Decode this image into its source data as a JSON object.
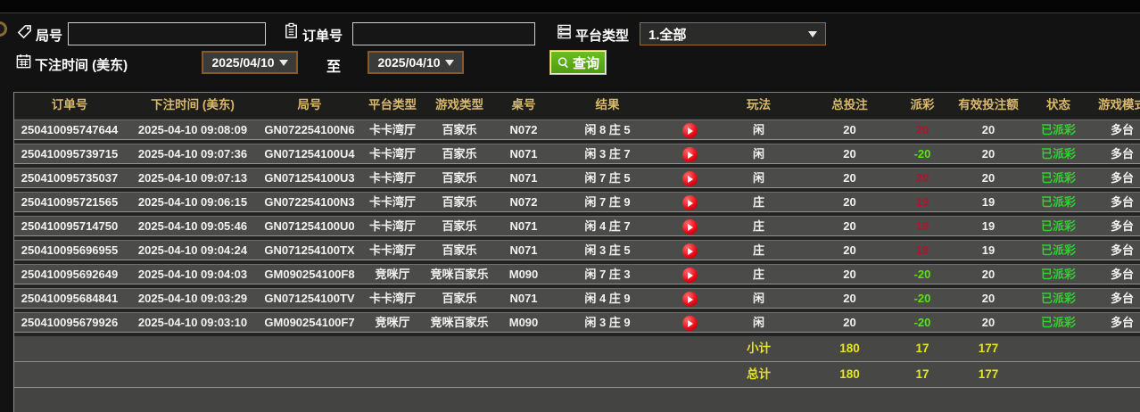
{
  "filters": {
    "round_label": "局号",
    "round_value": "",
    "order_label": "订单号",
    "order_value": "",
    "platform_label": "平台类型",
    "platform_selected": "1.全部",
    "bet_time_label": "下注时间 (美东)",
    "date_from": "2025/04/10",
    "to_label": "至",
    "date_to": "2025/04/10",
    "query_label": "查询"
  },
  "table": {
    "columns": [
      "订单号",
      "下注时间 (美东)",
      "局号",
      "平台类型",
      "游戏类型",
      "桌号",
      "结果",
      "",
      "玩法",
      "总投注",
      "派彩",
      "有效投注额",
      "状态",
      "游戏模式"
    ],
    "rows": [
      {
        "order": "250410095747644",
        "time": "2025-04-10 09:08:09",
        "round": "GN072254100N6",
        "platform": "卡卡湾厅",
        "game": "百家乐",
        "table_no": "N072",
        "result": "闲 8 庄 5",
        "bet_on": "闲",
        "total_bet": "20",
        "payout": "20",
        "payout_color": "red",
        "valid_bet": "20",
        "status": "已派彩",
        "mode": "多台"
      },
      {
        "order": "250410095739715",
        "time": "2025-04-10 09:07:36",
        "round": "GN071254100U4",
        "platform": "卡卡湾厅",
        "game": "百家乐",
        "table_no": "N071",
        "result": "闲 3 庄 7",
        "bet_on": "闲",
        "total_bet": "20",
        "payout": "-20",
        "payout_color": "green",
        "valid_bet": "20",
        "status": "已派彩",
        "mode": "多台"
      },
      {
        "order": "250410095735037",
        "time": "2025-04-10 09:07:13",
        "round": "GN071254100U3",
        "platform": "卡卡湾厅",
        "game": "百家乐",
        "table_no": "N071",
        "result": "闲 7 庄 5",
        "bet_on": "闲",
        "total_bet": "20",
        "payout": "20",
        "payout_color": "red",
        "valid_bet": "20",
        "status": "已派彩",
        "mode": "多台"
      },
      {
        "order": "250410095721565",
        "time": "2025-04-10 09:06:15",
        "round": "GN072254100N3",
        "platform": "卡卡湾厅",
        "game": "百家乐",
        "table_no": "N072",
        "result": "闲 7 庄 9",
        "bet_on": "庄",
        "total_bet": "20",
        "payout": "19",
        "payout_color": "red",
        "valid_bet": "19",
        "status": "已派彩",
        "mode": "多台"
      },
      {
        "order": "250410095714750",
        "time": "2025-04-10 09:05:46",
        "round": "GN071254100U0",
        "platform": "卡卡湾厅",
        "game": "百家乐",
        "table_no": "N071",
        "result": "闲 4 庄 7",
        "bet_on": "庄",
        "total_bet": "20",
        "payout": "19",
        "payout_color": "red",
        "valid_bet": "19",
        "status": "已派彩",
        "mode": "多台"
      },
      {
        "order": "250410095696955",
        "time": "2025-04-10 09:04:24",
        "round": "GN071254100TX",
        "platform": "卡卡湾厅",
        "game": "百家乐",
        "table_no": "N071",
        "result": "闲 3 庄 5",
        "bet_on": "庄",
        "total_bet": "20",
        "payout": "19",
        "payout_color": "red",
        "valid_bet": "19",
        "status": "已派彩",
        "mode": "多台"
      },
      {
        "order": "250410095692649",
        "time": "2025-04-10 09:04:03",
        "round": "GM090254100F8",
        "platform": "竞咪厅",
        "game": "竞咪百家乐",
        "table_no": "M090",
        "result": "闲 7 庄 3",
        "bet_on": "庄",
        "total_bet": "20",
        "payout": "-20",
        "payout_color": "green",
        "valid_bet": "20",
        "status": "已派彩",
        "mode": "多台"
      },
      {
        "order": "250410095684841",
        "time": "2025-04-10 09:03:29",
        "round": "GN071254100TV",
        "platform": "卡卡湾厅",
        "game": "百家乐",
        "table_no": "N071",
        "result": "闲 4 庄 9",
        "bet_on": "闲",
        "total_bet": "20",
        "payout": "-20",
        "payout_color": "green",
        "valid_bet": "20",
        "status": "已派彩",
        "mode": "多台"
      },
      {
        "order": "250410095679926",
        "time": "2025-04-10 09:03:10",
        "round": "GM090254100F7",
        "platform": "竞咪厅",
        "game": "竞咪百家乐",
        "table_no": "M090",
        "result": "闲 3 庄 9",
        "bet_on": "闲",
        "total_bet": "20",
        "payout": "-20",
        "payout_color": "green",
        "valid_bet": "20",
        "status": "已派彩",
        "mode": "多台"
      }
    ],
    "subtotal": {
      "label": "小计",
      "total_bet": "180",
      "payout": "17",
      "valid_bet": "177"
    },
    "grand_total": {
      "label": "总计",
      "total_bet": "180",
      "payout": "17",
      "valid_bet": "177"
    }
  },
  "colors": {
    "header_gold": "#d9b96a",
    "payout_positive_red": "#b2152a",
    "payout_negative_green": "#55e60a",
    "status_green": "#2ed12e",
    "summary_yellow": "#e6e61e",
    "query_button_green": "#58a716",
    "date_border_brown": "#8a5a26",
    "row_gray": "#4b4b49"
  }
}
